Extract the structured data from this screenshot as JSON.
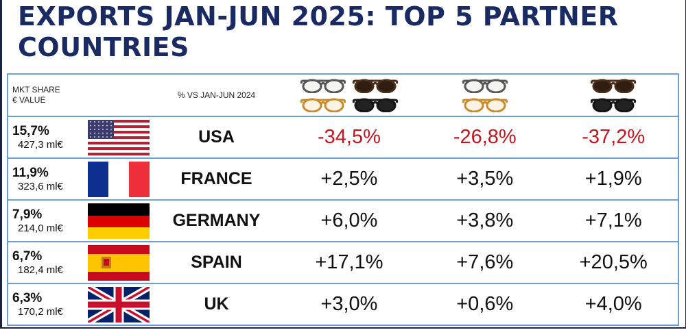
{
  "title": "EXPORTS JAN-JUN 2025: TOP 5 PARTNER COUNTRIES",
  "header": {
    "share_label_1": "MKT SHARE",
    "share_label_2": "€ VALUE",
    "change_label": "% VS JAN-JUN 2024",
    "column_icons": [
      "frames-and-sunglasses-icon",
      "frames-icon",
      "sunglasses-icon"
    ]
  },
  "colors": {
    "title": "#1a2a62",
    "negative": "#c4161c",
    "border": "#6a9fd8"
  },
  "chart_data": {
    "type": "table",
    "title": "EXPORTS JAN-JUN 2025: TOP 5 PARTNER COUNTRIES",
    "rows": [
      {
        "country": "USA",
        "flag": "usa-flag",
        "share": "15,7%",
        "value": "427,3 ml€",
        "changes": [
          "-34,5%",
          "-26,8%",
          "-37,2%"
        ],
        "negative": true
      },
      {
        "country": "FRANCE",
        "flag": "france-flag",
        "share": "11,9%",
        "value": "323,6 ml€",
        "changes": [
          "+2,5%",
          "+3,5%",
          "+1,9%"
        ],
        "negative": false
      },
      {
        "country": "GERMANY",
        "flag": "germany-flag",
        "share": "7,9%",
        "value": "214,0 ml€",
        "changes": [
          "+6,0%",
          "+3,8%",
          "+7,1%"
        ],
        "negative": false
      },
      {
        "country": "SPAIN",
        "flag": "spain-flag",
        "share": "6,7%",
        "value": "182,4 ml€",
        "changes": [
          "+17,1%",
          "+7,6%",
          "+20,5%"
        ],
        "negative": false
      },
      {
        "country": "UK",
        "flag": "uk-flag",
        "share": "6,3%",
        "value": "170,2 ml€",
        "changes": [
          "+3,0%",
          "+0,6%",
          "+4,0%"
        ],
        "negative": false
      }
    ]
  }
}
